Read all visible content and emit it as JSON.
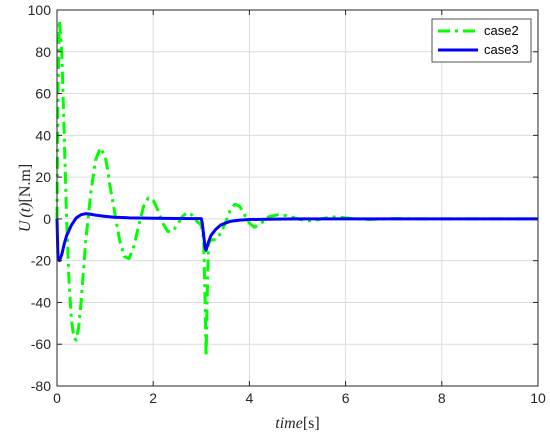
{
  "chart_data": {
    "type": "line",
    "title": "",
    "xlabel": {
      "var": "time",
      "unit": "[s]"
    },
    "ylabel": {
      "var": "U",
      "arg": "(t)",
      "unit": "[N.m]"
    },
    "xlim": [
      0,
      10
    ],
    "ylim": [
      -80,
      100
    ],
    "xticks": [
      0,
      2,
      4,
      6,
      8,
      10
    ],
    "yticks": [
      -80,
      -60,
      -40,
      -20,
      0,
      20,
      40,
      60,
      80,
      100
    ],
    "grid": true,
    "legend_position": "top-right",
    "series": [
      {
        "name": "case2",
        "color": "#00ff00",
        "style": "dash-dot",
        "x": [
          0,
          0.02,
          0.05,
          0.1,
          0.15,
          0.2,
          0.25,
          0.3,
          0.35,
          0.4,
          0.45,
          0.5,
          0.55,
          0.6,
          0.7,
          0.8,
          0.9,
          1.0,
          1.05,
          1.1,
          1.2,
          1.3,
          1.4,
          1.5,
          1.6,
          1.7,
          1.8,
          1.9,
          2.0,
          2.1,
          2.2,
          2.3,
          2.4,
          2.5,
          2.6,
          2.7,
          2.8,
          2.9,
          3.0,
          3.05,
          3.08,
          3.1,
          3.12,
          3.15,
          3.2,
          3.3,
          3.4,
          3.5,
          3.6,
          3.7,
          3.8,
          3.9,
          4.0,
          4.1,
          4.2,
          4.3,
          4.4,
          4.6,
          4.8,
          5.0,
          5.2,
          5.4,
          5.6,
          5.8,
          6.0,
          6.2,
          6.5,
          7.0,
          7.5,
          8.0,
          9.0,
          10.0
        ],
        "y": [
          0,
          60,
          95,
          80,
          40,
          0,
          -30,
          -48,
          -57,
          -58,
          -52,
          -40,
          -25,
          -10,
          12,
          28,
          34,
          30,
          24,
          16,
          3,
          -10,
          -18,
          -19,
          -13,
          -3,
          6,
          10,
          9,
          4,
          -2,
          -6,
          -6,
          -3,
          1,
          3,
          2,
          -1,
          -3,
          -10,
          -40,
          -66,
          -40,
          -12,
          -10,
          -10,
          -7,
          -2,
          4,
          7,
          6,
          2,
          -2,
          -4,
          -3,
          -1,
          1,
          2,
          1.5,
          0,
          -1,
          -0.5,
          0.5,
          1,
          0.5,
          0,
          -0.3,
          0.2,
          0,
          0,
          0,
          0
        ]
      },
      {
        "name": "case3",
        "color": "#0000ff",
        "style": "solid",
        "x": [
          0,
          0.02,
          0.05,
          0.1,
          0.15,
          0.2,
          0.3,
          0.4,
          0.5,
          0.6,
          0.7,
          0.8,
          1.0,
          1.2,
          1.5,
          2.0,
          2.5,
          3.0,
          3.02,
          3.05,
          3.08,
          3.1,
          3.15,
          3.2,
          3.3,
          3.4,
          3.5,
          3.6,
          3.8,
          4.0,
          4.5,
          5.0,
          6.0,
          8.0,
          10.0
        ],
        "y": [
          0,
          -19,
          -20,
          -17,
          -12,
          -8,
          -3,
          0.5,
          2,
          2.5,
          2.2,
          1.8,
          1.2,
          0.8,
          0.5,
          0.3,
          0.2,
          0.1,
          -2,
          -8,
          -14,
          -15,
          -11,
          -8,
          -5,
          -3,
          -2,
          -1.2,
          -0.6,
          -0.3,
          -0.1,
          0,
          0,
          0,
          0
        ]
      }
    ]
  }
}
